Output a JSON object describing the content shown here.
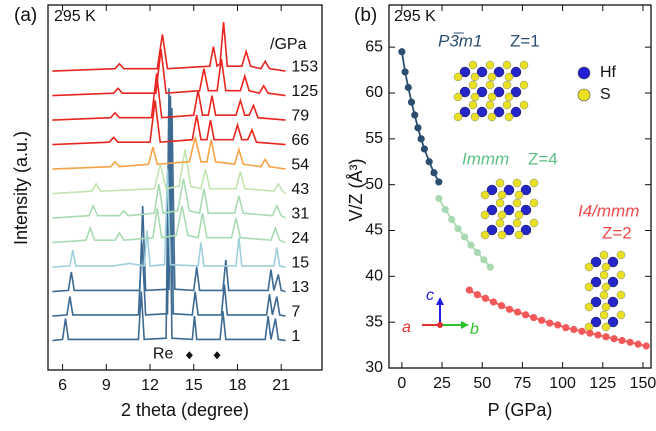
{
  "chart_data": [
    {
      "type": "line",
      "panel_label": "(a)",
      "temperature": "295 K",
      "unit_label": "/GPa",
      "x_label": "2 theta (degree)",
      "y_label": "Intensity (a.u.)",
      "xlim": [
        5,
        23.8
      ],
      "ylim": [
        -1.2,
        13.7
      ],
      "xticks": [
        6,
        9,
        12,
        15,
        18,
        21
      ],
      "reference_name": "Re",
      "reference_peaks": [
        14.7,
        16.6
      ],
      "series": [
        {
          "name": "1",
          "color": "#3d6a93",
          "x": [
            5.3,
            6.0,
            6.2,
            6.4,
            11.2,
            11.4,
            11.6,
            13.1,
            13.3,
            13.5,
            14.9,
            15.05,
            15.2,
            16.8,
            17.0,
            17.2,
            19.9,
            20.1,
            20.3,
            20.6,
            20.8,
            21.3
          ],
          "values": [
            0,
            0.05,
            0.9,
            0.05,
            0.05,
            2.0,
            0.05,
            0.1,
            10.3,
            0.1,
            0.05,
            1.0,
            0.05,
            0.05,
            1.2,
            0.05,
            0.05,
            1.0,
            0.05,
            0.9,
            0.05,
            0
          ]
        },
        {
          "name": "7",
          "color": "#3d6a93",
          "x": [
            5.3,
            6.3,
            6.5,
            6.7,
            11.2,
            11.45,
            11.7,
            13.2,
            13.4,
            13.6,
            14.9,
            15.1,
            15.3,
            16.9,
            17.1,
            17.3,
            20.0,
            20.2,
            20.4,
            20.7,
            20.9,
            21.3
          ],
          "values": [
            1,
            1.05,
            1.8,
            1.05,
            1.05,
            4.0,
            1.05,
            1.1,
            10.0,
            1.1,
            1.05,
            2.0,
            1.05,
            1.05,
            2.3,
            1.05,
            1.05,
            1.9,
            1.05,
            1.8,
            1.05,
            1
          ]
        },
        {
          "name": "13",
          "color": "#3d6a93",
          "x": [
            5.3,
            6.4,
            6.6,
            6.8,
            11.3,
            11.5,
            11.7,
            13.3,
            13.5,
            13.7,
            15.0,
            15.2,
            15.4,
            17.0,
            17.2,
            17.4,
            20.1,
            20.3,
            20.5,
            20.8,
            21.0,
            21.3
          ],
          "values": [
            2,
            2.05,
            2.8,
            2.05,
            2.05,
            5.5,
            2.05,
            2.1,
            9.5,
            2.1,
            2.05,
            3.0,
            2.05,
            2.05,
            3.3,
            2.05,
            2.05,
            2.9,
            2.05,
            2.7,
            2.05,
            2
          ]
        },
        {
          "name": "15",
          "color": "#9fd0dc",
          "x": [
            5.3,
            6.5,
            6.7,
            6.9,
            9.5,
            10.6,
            11.6,
            11.8,
            12.0,
            13.0,
            13.2,
            13.4,
            15.3,
            15.5,
            15.7,
            17.9,
            18.1,
            18.3,
            20.5,
            20.7,
            20.9,
            21.3
          ],
          "values": [
            3,
            3.05,
            3.7,
            3.05,
            3.05,
            3.15,
            3.05,
            4.5,
            3.05,
            3.1,
            7.0,
            3.1,
            3.05,
            4.0,
            3.05,
            3.05,
            4.2,
            3.05,
            3.05,
            3.8,
            3.05,
            3
          ]
        },
        {
          "name": "24",
          "color": "#a9dbb3",
          "x": [
            5.3,
            7.6,
            7.9,
            8.2,
            9.6,
            9.9,
            10.2,
            12.2,
            12.5,
            12.8,
            13.8,
            14.2,
            14.6,
            15.3,
            15.6,
            15.9,
            17.6,
            17.9,
            18.2,
            20.3,
            20.6,
            20.9,
            21.3
          ],
          "values": [
            4,
            4.1,
            4.6,
            4.1,
            4.1,
            4.4,
            4.1,
            4.2,
            5.4,
            4.2,
            4.3,
            5.5,
            4.3,
            4.2,
            5.2,
            4.2,
            4.2,
            5.0,
            4.2,
            4.1,
            4.6,
            4.1,
            4
          ]
        },
        {
          "name": "31",
          "color": "#a9dbb3",
          "x": [
            5.3,
            7.8,
            8.1,
            8.4,
            9.9,
            10.2,
            10.5,
            12.3,
            12.6,
            12.9,
            13.9,
            14.3,
            14.7,
            15.4,
            15.7,
            16.0,
            17.8,
            18.1,
            18.4,
            20.4,
            20.7,
            21.0,
            21.3
          ],
          "values": [
            5,
            5.1,
            5.5,
            5.1,
            5.1,
            5.3,
            5.1,
            5.2,
            6.4,
            5.2,
            5.3,
            6.6,
            5.3,
            5.2,
            6.2,
            5.2,
            5.2,
            5.9,
            5.2,
            5.1,
            5.5,
            5.1,
            5
          ]
        },
        {
          "name": "43",
          "color": "#c4e4b2",
          "x": [
            5.3,
            8.0,
            8.3,
            8.6,
            12.3,
            12.7,
            13.1,
            14.0,
            14.4,
            14.8,
            15.5,
            15.8,
            16.1,
            17.9,
            18.2,
            18.5,
            20.5,
            20.8,
            21.1,
            21.3
          ],
          "values": [
            6,
            6.1,
            6.4,
            6.1,
            6.2,
            7.2,
            6.2,
            6.3,
            7.8,
            6.3,
            6.2,
            7.0,
            6.2,
            6.2,
            6.9,
            6.2,
            6.1,
            6.4,
            6.1,
            6
          ]
        },
        {
          "name": "54",
          "color": "#f6a347",
          "x": [
            5.3,
            9.3,
            9.6,
            9.9,
            11.9,
            12.2,
            12.5,
            14.7,
            15.1,
            15.5,
            15.9,
            16.2,
            16.5,
            17.8,
            18.1,
            18.4,
            19.6,
            19.9,
            20.2,
            21.3
          ],
          "values": [
            7,
            7.1,
            7.3,
            7.1,
            7.2,
            7.9,
            7.2,
            7.3,
            8.3,
            7.3,
            7.3,
            8.2,
            7.3,
            7.2,
            7.8,
            7.2,
            7.1,
            7.4,
            7.1,
            7
          ]
        },
        {
          "name": "66",
          "color": "#e8261f",
          "x": [
            5.3,
            9.2,
            9.5,
            9.8,
            12.0,
            12.35,
            12.7,
            14.9,
            15.2,
            15.5,
            15.9,
            16.15,
            16.4,
            17.7,
            18.0,
            18.3,
            18.7,
            19.0,
            19.3,
            21.3
          ],
          "values": [
            8,
            8.1,
            8.3,
            8.1,
            8.1,
            9.8,
            8.1,
            8.2,
            9.2,
            8.2,
            8.2,
            9.0,
            8.2,
            8.2,
            8.8,
            8.2,
            8.2,
            8.6,
            8.1,
            8
          ]
        },
        {
          "name": "79",
          "color": "#e8261f",
          "x": [
            5.3,
            9.3,
            9.6,
            9.9,
            12.1,
            12.45,
            12.8,
            15.0,
            15.3,
            15.6,
            16.0,
            16.25,
            16.5,
            17.9,
            18.2,
            18.5,
            18.8,
            19.1,
            19.4,
            21.3
          ],
          "values": [
            9,
            9.1,
            9.3,
            9.1,
            9.1,
            10.9,
            9.1,
            9.2,
            10.2,
            9.2,
            9.2,
            10.0,
            9.2,
            9.2,
            9.8,
            9.2,
            9.2,
            9.6,
            9.1,
            9
          ]
        },
        {
          "name": "125",
          "color": "#e8261f",
          "x": [
            5.3,
            9.5,
            9.8,
            10.1,
            12.4,
            12.75,
            13.1,
            15.4,
            15.7,
            16.0,
            16.6,
            16.9,
            17.2,
            18.2,
            18.5,
            18.8,
            19.5,
            19.8,
            20.1,
            21.3
          ],
          "values": [
            10,
            10.1,
            10.3,
            10.1,
            10.1,
            11.9,
            10.1,
            10.2,
            11.1,
            10.2,
            10.2,
            11.5,
            10.2,
            10.2,
            10.8,
            10.2,
            10.1,
            10.4,
            10.1,
            10
          ]
        },
        {
          "name": "153",
          "color": "#e8261f",
          "x": [
            5.3,
            9.6,
            9.9,
            10.2,
            12.5,
            12.85,
            13.2,
            16.1,
            16.35,
            16.6,
            16.8,
            17.05,
            17.3,
            18.3,
            18.6,
            18.9,
            19.6,
            19.9,
            20.2,
            21.3
          ],
          "values": [
            11,
            11.1,
            11.3,
            11.1,
            11.1,
            12.5,
            11.1,
            11.2,
            12.0,
            11.2,
            11.3,
            13.0,
            11.2,
            11.2,
            11.8,
            11.2,
            11.1,
            11.4,
            11.1,
            11
          ]
        }
      ]
    },
    {
      "type": "scatter",
      "panel_label": "(b)",
      "temperature": "295 K",
      "x_label": "P (GPa)",
      "y_label": "V/Z (Å³)",
      "xlim": [
        -8,
        155
      ],
      "ylim": [
        30,
        69.6
      ],
      "xticks": [
        0,
        25,
        50,
        75,
        100,
        125,
        150
      ],
      "yticks": [
        30,
        35,
        40,
        45,
        50,
        55,
        60,
        65
      ],
      "connect": true,
      "annotations": {
        "phase1": "P3̅m1",
        "z1": "Z=1",
        "phase2": "Immm",
        "z2": "Z=4",
        "phase3": "I4/mmm",
        "z3": "Z=2",
        "axis_a": "a",
        "axis_b": "b",
        "axis_c": "c"
      },
      "atoms": [
        {
          "name": "Hf",
          "color": "#2020d0"
        },
        {
          "name": "S",
          "color": "#e8e020"
        }
      ],
      "series": [
        {
          "name": "P3̅m1",
          "color": "#2b4e70",
          "x": [
            0,
            2,
            4,
            6,
            8,
            10,
            12,
            14,
            17,
            20,
            23
          ],
          "values": [
            64.5,
            62.3,
            60.6,
            59.0,
            57.6,
            56.2,
            55.0,
            53.9,
            52.5,
            51.3,
            50.3
          ]
        },
        {
          "name": "Immm",
          "color": "#a8d9b2",
          "x": [
            23,
            27,
            31,
            35,
            39,
            43,
            47,
            51,
            55
          ],
          "values": [
            48.5,
            47.3,
            46.2,
            45.2,
            44.3,
            43.4,
            42.6,
            41.8,
            41.0
          ]
        },
        {
          "name": "I4/mmm",
          "color": "#f25858",
          "x": [
            42,
            47,
            52,
            57,
            62,
            67,
            72,
            77,
            82,
            87,
            92,
            97,
            102,
            107,
            112,
            117,
            122,
            127,
            132,
            137,
            142,
            147,
            152
          ],
          "values": [
            38.5,
            38.0,
            37.6,
            37.2,
            36.8,
            36.4,
            36.1,
            35.8,
            35.5,
            35.2,
            34.9,
            34.7,
            34.4,
            34.2,
            34.0,
            33.8,
            33.6,
            33.4,
            33.2,
            33.0,
            32.8,
            32.6,
            32.4
          ]
        }
      ]
    }
  ]
}
